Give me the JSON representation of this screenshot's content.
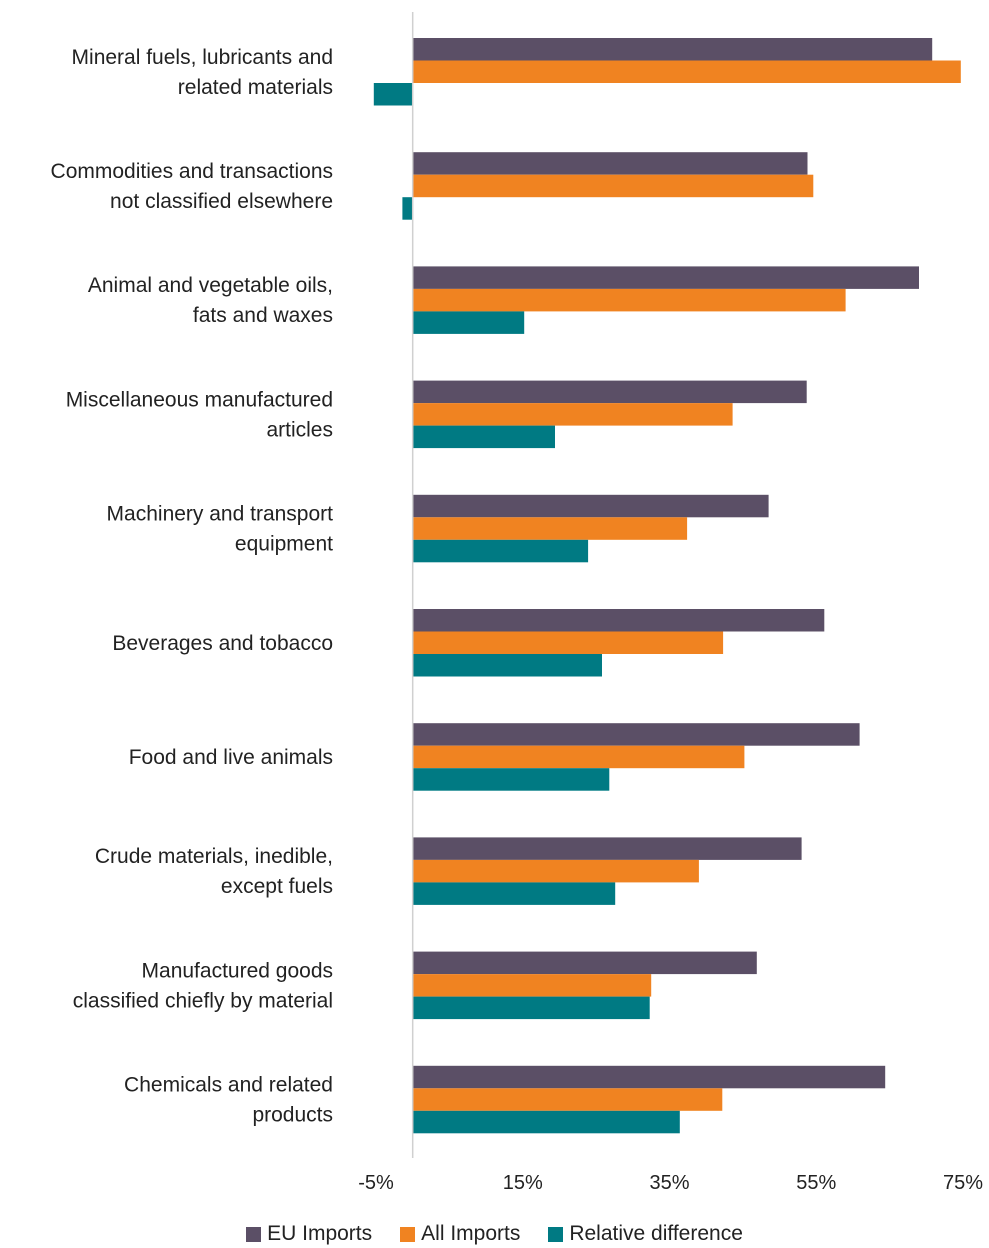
{
  "chart_data": {
    "type": "bar",
    "orientation": "horizontal",
    "categories": [
      [
        "Mineral fuels, lubricants and",
        "related materials"
      ],
      [
        "Commodities and transactions",
        "not classified elsewhere"
      ],
      [
        "Animal and vegetable oils,",
        "fats and waxes"
      ],
      [
        "Miscellaneous manufactured",
        "articles"
      ],
      [
        "Machinery and transport",
        "equipment"
      ],
      [
        "Beverages and tobacco"
      ],
      [
        "Food and live animals"
      ],
      [
        "Crude materials, inedible,",
        "except fuels"
      ],
      [
        "Manufactured goods",
        "classified chiefly by material"
      ],
      [
        "Chemicals and related",
        "products"
      ]
    ],
    "series": [
      {
        "name": "EU Imports",
        "color": "#5B4F66",
        "values": [
          70.8,
          53.8,
          69.0,
          53.7,
          48.5,
          56.1,
          60.9,
          53.0,
          46.9,
          64.4
        ]
      },
      {
        "name": "All Imports",
        "color": "#F08321",
        "values": [
          74.7,
          54.6,
          59.0,
          43.6,
          37.4,
          42.3,
          45.2,
          39.0,
          32.5,
          42.2
        ]
      },
      {
        "name": "Relative difference",
        "color": "#007A83",
        "values": [
          -5.3,
          -1.4,
          15.2,
          19.4,
          23.9,
          25.8,
          26.8,
          27.6,
          32.3,
          36.4
        ]
      }
    ],
    "xlim": [
      -5,
      75
    ],
    "xticks": [
      -5,
      15,
      35,
      55,
      75
    ],
    "xtick_labels": [
      "-5%",
      "15%",
      "35%",
      "55%",
      "75%"
    ],
    "zero_line": 0,
    "grid": false,
    "legend_position": "bottom"
  }
}
